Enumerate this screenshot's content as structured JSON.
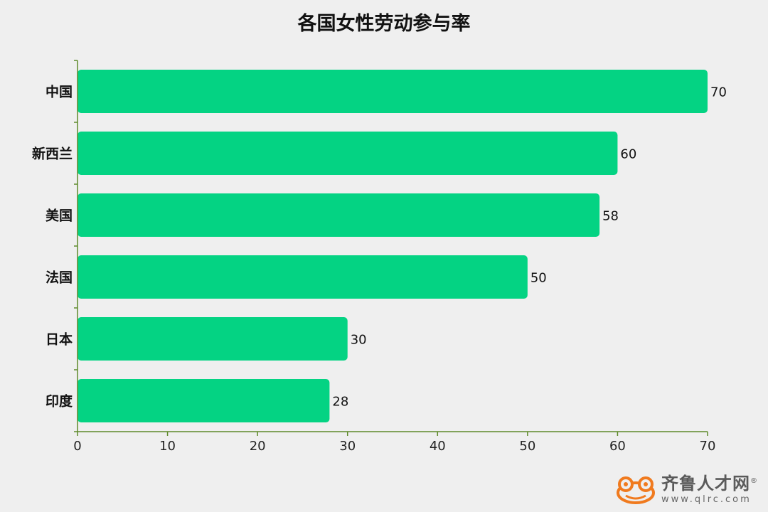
{
  "chart_data": {
    "type": "bar",
    "orientation": "horizontal",
    "title": "各国女性劳动参与率",
    "categories": [
      "中国",
      "新西兰",
      "美国",
      "法国",
      "日本",
      "印度"
    ],
    "values": [
      70,
      60,
      58,
      50,
      30,
      28
    ],
    "data_labels": [
      "70",
      "60",
      "58",
      "50",
      "30",
      "28"
    ],
    "xlim": [
      0,
      70
    ],
    "x_ticks": [
      "0",
      "10",
      "20",
      "30",
      "40",
      "50",
      "60",
      "70"
    ],
    "grid": false,
    "bar_color": "#04d383",
    "axis_color": "#5e8a2a"
  },
  "logo": {
    "text": "齐鲁人才网",
    "url": "www.qlrc.com",
    "registered_mark": "®",
    "color": "#f07a1e"
  }
}
